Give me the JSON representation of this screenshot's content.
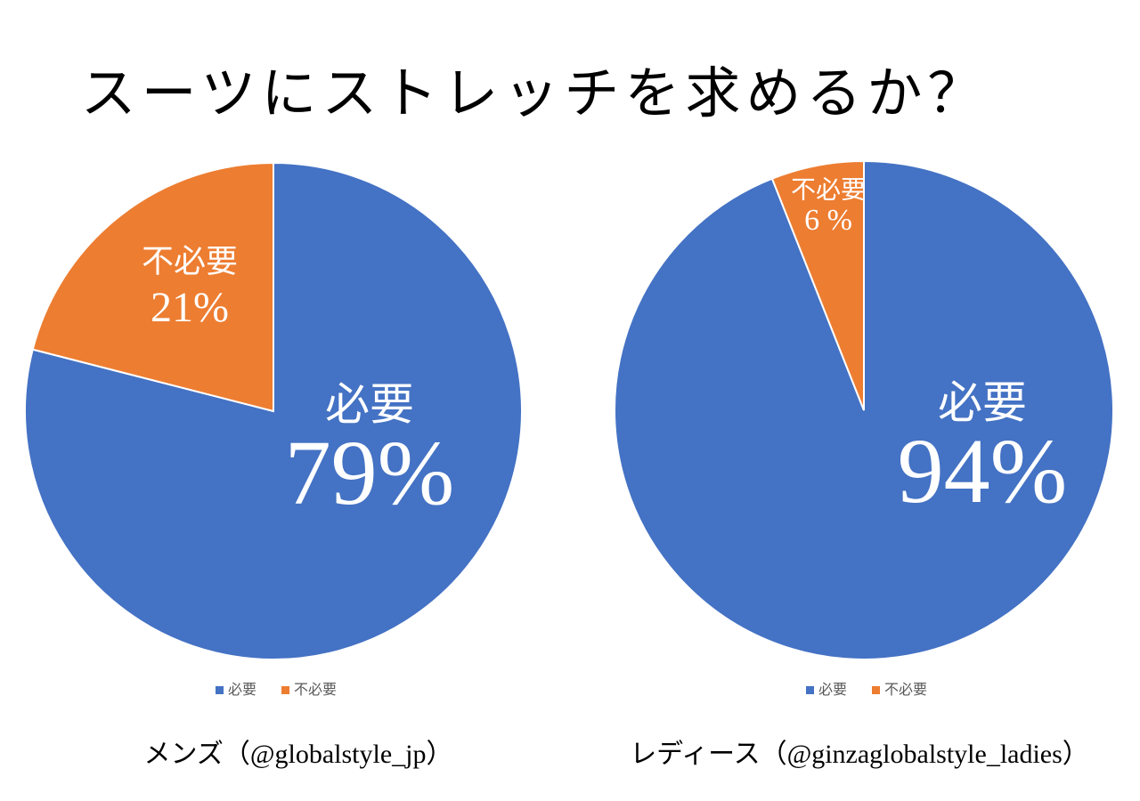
{
  "title": "スーツにストレッチを求めるか？",
  "chart_data": [
    {
      "type": "pie",
      "categories": [
        "必要",
        "不必要"
      ],
      "values": [
        79,
        21
      ],
      "value_labels": [
        "79%",
        "21%"
      ],
      "colors": [
        "#4472c4",
        "#ed7d31"
      ],
      "caption": "メンズ（@globalstyle_jp）"
    },
    {
      "type": "pie",
      "categories": [
        "必要",
        "不必要"
      ],
      "values": [
        94,
        6
      ],
      "value_labels": [
        "94%",
        "6 %"
      ],
      "colors": [
        "#4472c4",
        "#ed7d31"
      ],
      "caption": "レディース（@ginzaglobalstyle_ladies）"
    }
  ]
}
